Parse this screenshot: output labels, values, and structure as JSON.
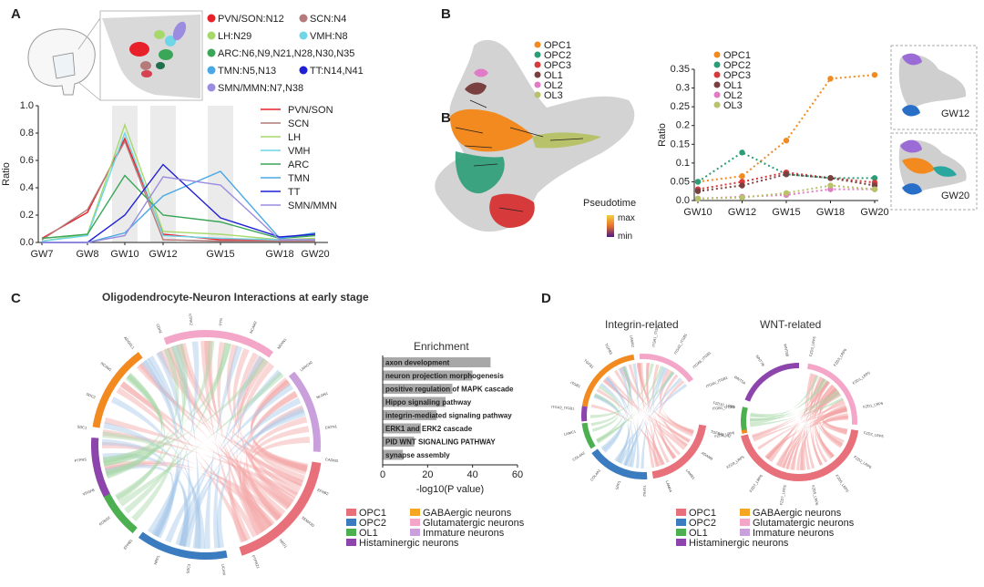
{
  "panels": [
    "A",
    "B",
    "C",
    "D"
  ],
  "panel_a": {
    "nuclei_legend": [
      {
        "label": "PVN/SON:N12",
        "color": "#e8202a"
      },
      {
        "label": "SCN:N4",
        "color": "#b57a7a"
      },
      {
        "label": "LH:N29",
        "color": "#a6d96a"
      },
      {
        "label": "VMH:N8",
        "color": "#6fd6e8"
      },
      {
        "label": "ARC:N6,N9,N21,N28,N30,N35",
        "color": "#3aa657"
      },
      {
        "label": "TMN:N5,N13",
        "color": "#4aa8e6"
      },
      {
        "label": "TT:N14,N41",
        "color": "#1f1fd6"
      },
      {
        "label": "SMN/MMN:N7,N38",
        "color": "#9b8ce0"
      }
    ]
  },
  "chart_data": [
    {
      "type": "line",
      "panel": "A",
      "x": [
        "GW7",
        "GW8",
        "GW10",
        "GW12",
        "GW15",
        "GW18",
        "GW20"
      ],
      "ylabel": "Ratio",
      "ylim": [
        0,
        1.0
      ],
      "yticks": [
        "0.0",
        "0.2",
        "0.4",
        "0.6",
        "0.8",
        "1.0"
      ],
      "highlight_bands": [
        "GW10",
        "GW12",
        "GW15"
      ],
      "legend_placement": "top-right",
      "series": [
        {
          "name": "PVN/SON",
          "color": "#e8202a",
          "values": [
            0.03,
            0.22,
            0.76,
            0.06,
            0.02,
            0.02,
            0.02
          ]
        },
        {
          "name": "SCN",
          "color": "#b57a7a",
          "values": [
            0.02,
            0.24,
            0.74,
            0.02,
            0.01,
            0.01,
            0.01
          ]
        },
        {
          "name": "LH",
          "color": "#a6d96a",
          "values": [
            0.01,
            0.06,
            0.86,
            0.08,
            0.06,
            0.02,
            0.03
          ]
        },
        {
          "name": "VMH",
          "color": "#6fd6e8",
          "values": [
            0.01,
            0.05,
            0.8,
            0.05,
            0.03,
            0.02,
            0.02
          ]
        },
        {
          "name": "ARC",
          "color": "#3aa657",
          "values": [
            0.03,
            0.06,
            0.49,
            0.2,
            0.15,
            0.03,
            0.05
          ]
        },
        {
          "name": "TMN",
          "color": "#4aa8e6",
          "values": [
            0.0,
            0.0,
            0.07,
            0.34,
            0.52,
            0.03,
            0.07
          ]
        },
        {
          "name": "TT",
          "color": "#1f1fd6",
          "values": [
            0.0,
            0.0,
            0.2,
            0.57,
            0.18,
            0.04,
            0.06
          ]
        },
        {
          "name": "SMN/MMN",
          "color": "#9b8ce0",
          "values": [
            0.0,
            0.0,
            0.05,
            0.48,
            0.42,
            0.02,
            0.02
          ]
        }
      ]
    },
    {
      "type": "line",
      "panel": "B",
      "x": [
        "GW10",
        "GW12",
        "GW15",
        "GW18",
        "GW20"
      ],
      "ylabel": "Ratio",
      "ylim": [
        0,
        0.35
      ],
      "yticks": [
        "0.0",
        "0.05",
        "0.1",
        "0.15",
        "0.2",
        "0.25",
        "0.3",
        "0.35"
      ],
      "line_style": "dotted",
      "legend_placement": "top-left",
      "series": [
        {
          "name": "OPC1",
          "color": "#f28a1f",
          "values": [
            0.05,
            0.065,
            0.16,
            0.325,
            0.335
          ]
        },
        {
          "name": "OPC2",
          "color": "#2a9d76",
          "values": [
            0.05,
            0.128,
            0.07,
            0.06,
            0.06
          ]
        },
        {
          "name": "OPC3",
          "color": "#d63a3a",
          "values": [
            0.03,
            0.05,
            0.075,
            0.06,
            0.048
          ]
        },
        {
          "name": "OL1",
          "color": "#7a4040",
          "values": [
            0.025,
            0.04,
            0.07,
            0.06,
            0.04
          ]
        },
        {
          "name": "OL2",
          "color": "#e27bc6",
          "values": [
            0.005,
            0.01,
            0.015,
            0.03,
            0.03
          ]
        },
        {
          "name": "OL3",
          "color": "#b8c26a",
          "values": [
            0.005,
            0.008,
            0.02,
            0.04,
            0.03
          ]
        }
      ]
    },
    {
      "type": "bar",
      "panel": "C",
      "orientation": "horizontal",
      "title": "Enrichment",
      "xlabel": "-log10(P value)",
      "xlim": [
        0,
        60
      ],
      "xticks": [
        "0",
        "20",
        "40",
        "60"
      ],
      "categories": [
        "axon development",
        "neuron projection morphogenesis",
        "positive regulation of MAPK cascade",
        "Hippo signaling pathway",
        "integrin-mediated signaling pathway",
        "ERK1 and ERK2 cascade",
        "PID WNT SIGNALING PATHWAY",
        "synapse assembly"
      ],
      "values": [
        48,
        40,
        31,
        28,
        24,
        17,
        14,
        9
      ]
    }
  ],
  "panel_b": {
    "umap_legend": [
      {
        "label": "OPC1",
        "color": "#f28a1f"
      },
      {
        "label": "OPC2",
        "color": "#2a9d76"
      },
      {
        "label": "OPC3",
        "color": "#d63a3a"
      },
      {
        "label": "OL1",
        "color": "#7a4040"
      },
      {
        "label": "OL2",
        "color": "#e27bc6"
      },
      {
        "label": "OL3",
        "color": "#b8c26a"
      }
    ],
    "inset_label": "B",
    "pseudotime": {
      "title": "Pseudotime",
      "max": "max",
      "min": "min"
    },
    "thumbnails": [
      "GW12",
      "GW20"
    ]
  },
  "panel_c": {
    "title": "Oligodendrocyte-Neuron Interactions at early stage",
    "legend": [
      {
        "label": "OPC1",
        "color": "#e8707a"
      },
      {
        "label": "GABAergic neurons",
        "color": "#f5a623"
      },
      {
        "label": "OPC2",
        "color": "#3b7bbf"
      },
      {
        "label": "Glutamatergic neurons",
        "color": "#f4a6c8"
      },
      {
        "label": "OL1",
        "color": "#4caf50"
      },
      {
        "label": "Immature neurons",
        "color": "#c9a0dc"
      },
      {
        "label": "Histaminergic neurons",
        "color": "#8e44ad"
      }
    ],
    "gene_labels": [
      "PTN",
      "NCAM2",
      "NRXN1",
      "LRRC4C",
      "NLGN1",
      "CNTN1",
      "CADM3",
      "EFNB2",
      "SEMA3D",
      "NRG1",
      "PTPRZ1",
      "LICAM",
      "SDC3",
      "NRP1",
      "EPHB1",
      "ROBO2",
      "VEGFB",
      "PTPRS",
      "SDC1",
      "SDC2",
      "NCAM1",
      "ADGRL1",
      "CDH2",
      "NTRK2"
    ]
  },
  "panel_d": {
    "integrin_title": "Integrin-related",
    "wnt_title": "WNT-related",
    "integrin_labels": [
      "ITGA1_ITGB1",
      "ITGA3_ITGB1",
      "ITGA6_ITGB1",
      "ITGAV_ITGB1",
      "ITGB1_ITGB5",
      "TGFBR1_R2",
      "ADAM9",
      "LAMB1",
      "LAMA4",
      "TGFB2",
      "SPP1",
      "COL4A1",
      "COL4A2",
      "LAMC1",
      "ITGA3_ITGB1",
      "ITGB1",
      "TGFB1",
      "TGFB3",
      "LAMA2"
    ],
    "wnt_labels": [
      "FZD3_LRP5",
      "FZD3_LRP6",
      "FZD1_LRP5",
      "FZD1_LRP6",
      "FZD2_LRP5",
      "FZD2_LRP6",
      "FZD5_LRP5",
      "FZD5_LRP6",
      "FZD7_LRP5",
      "FZD7_LRP6",
      "FZD8_LRP5",
      "FZD8_LRP6",
      "FZD10_LRP5",
      "WNT5A",
      "WNT7B",
      "WNT5B"
    ],
    "legend": [
      {
        "label": "OPC1",
        "color": "#e8707a"
      },
      {
        "label": "GABAergic neurons",
        "color": "#f5a623"
      },
      {
        "label": "OPC2",
        "color": "#3b7bbf"
      },
      {
        "label": "Glutamatergic neurons",
        "color": "#f4a6c8"
      },
      {
        "label": "OL1",
        "color": "#4caf50"
      },
      {
        "label": "Immature neurons",
        "color": "#c9a0dc"
      },
      {
        "label": "Histaminergic neurons",
        "color": "#8e44ad"
      }
    ]
  }
}
